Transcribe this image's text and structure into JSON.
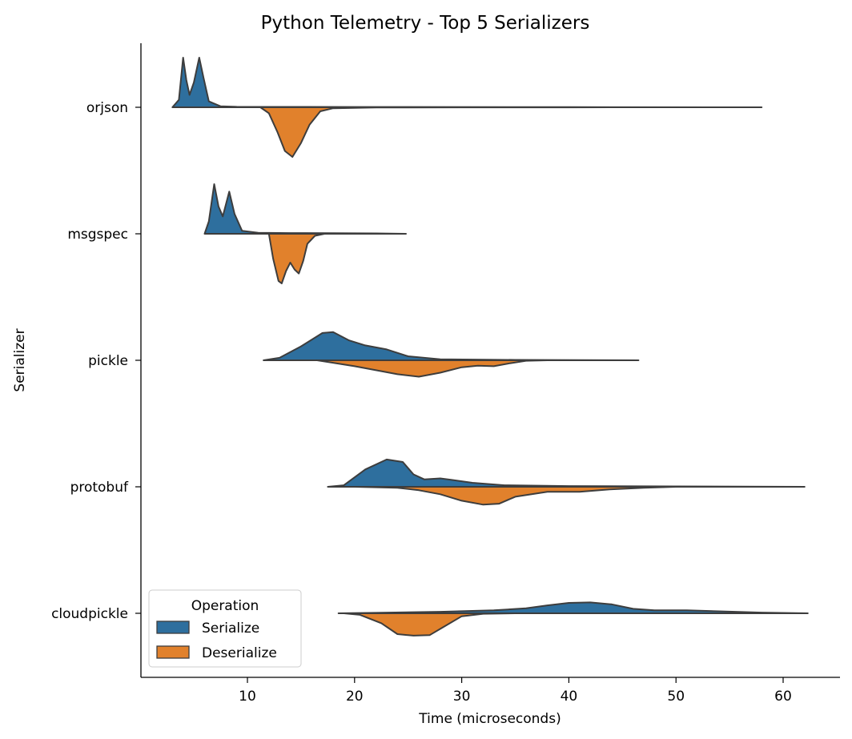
{
  "chart_data": {
    "type": "split-violin",
    "title": "Python Telemetry - Top 5 Serializers",
    "xlabel": "Time (microseconds)",
    "ylabel": "Serializer",
    "xlim": [
      0,
      65
    ],
    "xticks": [
      10,
      20,
      30,
      40,
      50,
      60
    ],
    "categories": [
      "orjson",
      "msgspec",
      "pickle",
      "protobuf",
      "cloudpickle"
    ],
    "legend": {
      "title": "Operation",
      "position": "lower-left",
      "entries": [
        "Serialize",
        "Deserialize"
      ]
    },
    "colors": {
      "Serialize": "#2e6f9e",
      "Deserialize": "#e1812c",
      "outline": "#3d3d3d"
    },
    "series": [
      {
        "name": "Serialize",
        "profiles": {
          "orjson": [
            [
              3.0,
              0
            ],
            [
              3.6,
              0.15
            ],
            [
              4.0,
              1.0
            ],
            [
              4.3,
              0.55
            ],
            [
              4.6,
              0.25
            ],
            [
              5.0,
              0.5
            ],
            [
              5.5,
              1.0
            ],
            [
              5.9,
              0.6
            ],
            [
              6.4,
              0.12
            ],
            [
              7.5,
              0.02
            ],
            [
              9,
              0.01
            ],
            [
              12,
              0.008
            ],
            [
              20,
              0.006
            ],
            [
              40,
              0.004
            ],
            [
              58,
              0
            ]
          ],
          "msgspec": [
            [
              6.0,
              0
            ],
            [
              6.4,
              0.25
            ],
            [
              6.9,
              1.0
            ],
            [
              7.3,
              0.55
            ],
            [
              7.7,
              0.35
            ],
            [
              8.3,
              0.85
            ],
            [
              8.8,
              0.4
            ],
            [
              9.5,
              0.06
            ],
            [
              11,
              0.02
            ],
            [
              14,
              0.015
            ],
            [
              18,
              0.012
            ],
            [
              22,
              0.008
            ],
            [
              24.8,
              0
            ]
          ],
          "pickle": [
            [
              11.5,
              0
            ],
            [
              13,
              0.05
            ],
            [
              15,
              0.28
            ],
            [
              17,
              0.55
            ],
            [
              18,
              0.57
            ],
            [
              19.5,
              0.4
            ],
            [
              21,
              0.3
            ],
            [
              23,
              0.22
            ],
            [
              25,
              0.08
            ],
            [
              28,
              0.02
            ],
            [
              35,
              0.008
            ],
            [
              46.5,
              0
            ]
          ],
          "protobuf": [
            [
              17.5,
              0
            ],
            [
              19,
              0.03
            ],
            [
              21,
              0.35
            ],
            [
              23,
              0.55
            ],
            [
              24.5,
              0.5
            ],
            [
              25.5,
              0.25
            ],
            [
              26.5,
              0.15
            ],
            [
              28,
              0.17
            ],
            [
              29,
              0.14
            ],
            [
              31,
              0.08
            ],
            [
              34,
              0.03
            ],
            [
              40,
              0.015
            ],
            [
              50,
              0.008
            ],
            [
              62,
              0
            ]
          ],
          "cloudpickle": [
            [
              18.5,
              0
            ],
            [
              22,
              0.01
            ],
            [
              28,
              0.03
            ],
            [
              33,
              0.06
            ],
            [
              36,
              0.1
            ],
            [
              38,
              0.16
            ],
            [
              40,
              0.21
            ],
            [
              42,
              0.22
            ],
            [
              44,
              0.18
            ],
            [
              46,
              0.09
            ],
            [
              48,
              0.06
            ],
            [
              51,
              0.06
            ],
            [
              54,
              0.04
            ],
            [
              58,
              0.015
            ],
            [
              62.3,
              0
            ]
          ]
        }
      },
      {
        "name": "Deserialize",
        "profiles": {
          "orjson": [
            [
              11.2,
              0
            ],
            [
              12,
              0.12
            ],
            [
              12.8,
              0.5
            ],
            [
              13.5,
              0.88
            ],
            [
              14.2,
              1.0
            ],
            [
              15.0,
              0.72
            ],
            [
              15.8,
              0.35
            ],
            [
              16.8,
              0.08
            ],
            [
              18,
              0.02
            ],
            [
              22,
              0.005
            ],
            [
              30,
              0.002
            ],
            [
              40,
              0.001
            ],
            [
              50,
              0
            ]
          ],
          "msgspec": [
            [
              12.0,
              0
            ],
            [
              12.4,
              0.5
            ],
            [
              12.9,
              0.95
            ],
            [
              13.2,
              1.0
            ],
            [
              13.6,
              0.75
            ],
            [
              14.0,
              0.58
            ],
            [
              14.4,
              0.72
            ],
            [
              14.8,
              0.8
            ],
            [
              15.2,
              0.55
            ],
            [
              15.6,
              0.2
            ],
            [
              16.3,
              0.04
            ],
            [
              17.2,
              0
            ]
          ],
          "pickle": [
            [
              16.5,
              0
            ],
            [
              18,
              0.05
            ],
            [
              20,
              0.12
            ],
            [
              22,
              0.2
            ],
            [
              24,
              0.28
            ],
            [
              26,
              0.33
            ],
            [
              28,
              0.25
            ],
            [
              30,
              0.14
            ],
            [
              31.5,
              0.11
            ],
            [
              33,
              0.12
            ],
            [
              34.5,
              0.06
            ],
            [
              36,
              0.01
            ],
            [
              38,
              0
            ]
          ],
          "protobuf": [
            [
              20,
              0
            ],
            [
              24,
              0.02
            ],
            [
              26,
              0.07
            ],
            [
              28,
              0.15
            ],
            [
              30,
              0.28
            ],
            [
              32,
              0.36
            ],
            [
              33.5,
              0.34
            ],
            [
              35,
              0.2
            ],
            [
              38,
              0.1
            ],
            [
              41,
              0.1
            ],
            [
              44,
              0.05
            ],
            [
              47,
              0.02
            ],
            [
              50,
              0
            ]
          ],
          "cloudpickle": [
            [
              19,
              0
            ],
            [
              20.5,
              0.03
            ],
            [
              22.5,
              0.2
            ],
            [
              24,
              0.42
            ],
            [
              25.5,
              0.45
            ],
            [
              27,
              0.44
            ],
            [
              28.5,
              0.25
            ],
            [
              30,
              0.06
            ],
            [
              32,
              0.01
            ],
            [
              35,
              0
            ]
          ]
        }
      }
    ]
  }
}
